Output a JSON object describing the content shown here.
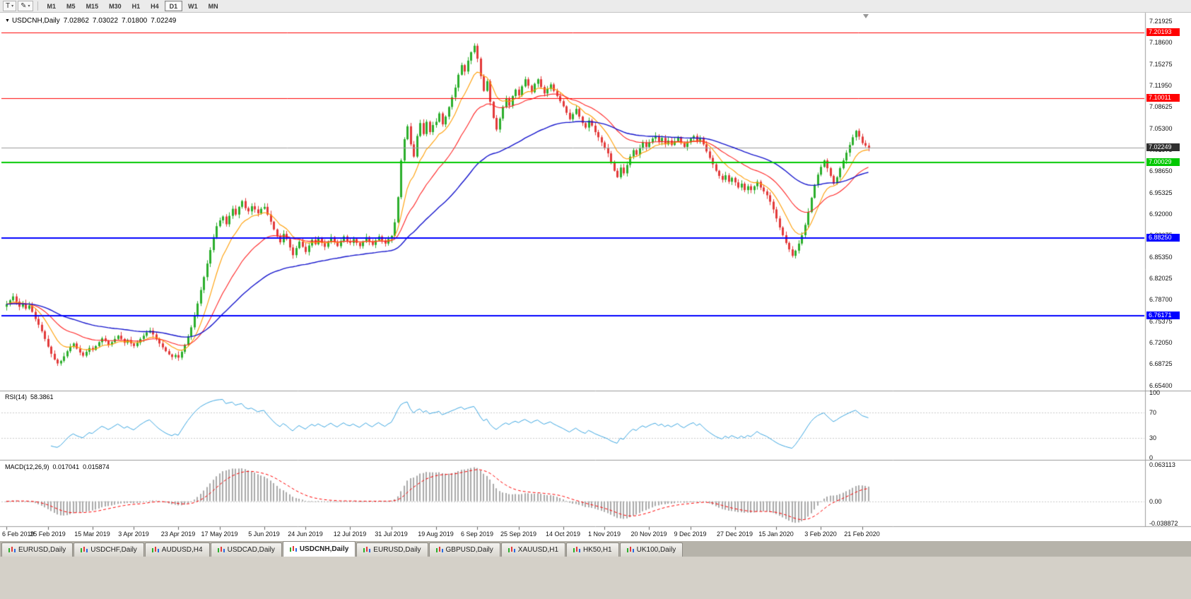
{
  "toolbar": {
    "text_tool_glyph": "T",
    "drawing_tool_glyph": "✎",
    "dropdown_glyph": "▾",
    "timeframes": [
      "M1",
      "M5",
      "M15",
      "M30",
      "H1",
      "H4",
      "D1",
      "W1",
      "MN"
    ],
    "active_timeframe": "D1"
  },
  "chart": {
    "menu_glyph": "▼",
    "title": "USDCNH,Daily",
    "ohlc": {
      "open": "7.02862",
      "high": "7.03022",
      "low": "7.01800",
      "close": "7.02249"
    }
  },
  "rsi": {
    "label": "RSI(14)",
    "value": "58.3861"
  },
  "macd": {
    "label": "MACD(12,26,9)",
    "value1": "0.017041",
    "value2": "0.015874"
  },
  "tabs_bar": {
    "active_index": 4,
    "items": [
      "EURUSD,Daily",
      "USDCHF,Daily",
      "AUDUSD,H4",
      "USDCAD,Daily",
      "USDCNH,Daily",
      "EURUSD,Daily",
      "GBPUSD,Daily",
      "XAUUSD,H1",
      "HK50,H1",
      "UK100,Daily"
    ]
  },
  "chart_data": {
    "type": "candlestick",
    "symbol": "USDCNH",
    "timeframe": "Daily",
    "ylim": [
      6.648,
      7.229
    ],
    "y_tick_labels": [
      "7.21925",
      "7.18600",
      "7.15275",
      "7.11950",
      "7.08625",
      "7.05300",
      "7.01975",
      "6.98650",
      "6.95325",
      "6.92000",
      "6.88675",
      "6.85350",
      "6.82025",
      "6.78700",
      "6.75375",
      "6.72050",
      "6.68725",
      "6.65400"
    ],
    "x_tick_labels": [
      "6 Feb 2019",
      "25 Feb 2019",
      "15 Mar 2019",
      "3 Apr 2019",
      "23 Apr 2019",
      "17 May 2019",
      "5 Jun 2019",
      "24 Jun 2019",
      "12 Jul 2019",
      "31 Jul 2019",
      "19 Aug 2019",
      "6 Sep 2019",
      "25 Sep 2019",
      "14 Oct 2019",
      "1 Nov 2019",
      "20 Nov 2019",
      "9 Dec 2019",
      "27 Dec 2019",
      "15 Jan 2020",
      "3 Feb 2020",
      "21 Feb 2020"
    ],
    "closes": [
      6.78,
      6.786,
      6.792,
      6.784,
      6.776,
      6.781,
      6.773,
      6.778,
      6.768,
      6.757,
      6.748,
      6.738,
      6.726,
      6.714,
      6.703,
      6.694,
      6.688,
      6.692,
      6.699,
      6.707,
      6.714,
      6.719,
      6.711,
      6.705,
      6.7,
      6.706,
      6.712,
      6.709,
      6.715,
      6.721,
      6.727,
      6.723,
      6.717,
      6.721,
      6.726,
      6.731,
      6.726,
      6.72,
      6.724,
      6.719,
      6.715,
      6.72,
      6.726,
      6.731,
      6.736,
      6.739,
      6.733,
      6.726,
      6.719,
      6.713,
      6.707,
      6.702,
      6.698,
      6.701,
      6.697,
      6.706,
      6.717,
      6.73,
      6.744,
      6.762,
      6.781,
      6.802,
      6.822,
      6.843,
      6.864,
      6.884,
      6.901,
      6.91,
      6.916,
      6.904,
      6.917,
      6.928,
      6.919,
      6.931,
      6.94,
      6.929,
      6.924,
      6.932,
      6.927,
      6.921,
      6.928,
      6.931,
      6.919,
      6.908,
      6.896,
      6.885,
      6.876,
      6.889,
      6.881,
      6.868,
      6.856,
      6.867,
      6.877,
      6.869,
      6.861,
      6.871,
      6.88,
      6.873,
      6.882,
      6.875,
      6.869,
      6.877,
      6.884,
      6.876,
      6.87,
      6.878,
      6.885,
      6.878,
      6.875,
      6.881,
      6.875,
      6.87,
      6.877,
      6.884,
      6.877,
      6.872,
      6.879,
      6.885,
      6.879,
      6.874,
      6.881,
      6.886,
      6.907,
      6.946,
      7.003,
      7.036,
      7.056,
      7.028,
      7.009,
      7.041,
      7.061,
      7.044,
      7.063,
      7.047,
      7.058,
      7.063,
      7.076,
      7.059,
      7.071,
      7.086,
      7.101,
      7.116,
      7.136,
      7.151,
      7.141,
      7.158,
      7.171,
      7.181,
      7.161,
      7.134,
      7.111,
      7.126,
      7.094,
      7.069,
      7.051,
      7.068,
      7.086,
      7.099,
      7.088,
      7.103,
      7.113,
      7.104,
      7.118,
      7.129,
      7.119,
      7.109,
      7.122,
      7.129,
      7.117,
      7.107,
      7.114,
      7.121,
      7.111,
      7.103,
      7.095,
      7.087,
      7.077,
      7.067,
      7.075,
      7.083,
      7.071,
      7.061,
      7.054,
      7.065,
      7.057,
      7.047,
      7.039,
      7.031,
      7.023,
      7.014,
      6.999,
      6.987,
      6.977,
      6.992,
      6.983,
      6.996,
      7.009,
      7.019,
      7.012,
      7.023,
      7.031,
      7.024,
      7.031,
      7.037,
      7.041,
      7.032,
      7.038,
      7.028,
      7.034,
      7.027,
      7.033,
      7.039,
      7.03,
      7.024,
      7.031,
      7.037,
      7.041,
      7.032,
      7.038,
      7.028,
      7.017,
      7.007,
      6.997,
      6.987,
      6.979,
      6.973,
      6.98,
      6.97,
      6.976,
      6.969,
      6.961,
      6.967,
      6.957,
      6.963,
      6.957,
      6.963,
      6.97,
      6.961,
      6.955,
      6.949,
      6.939,
      6.927,
      6.913,
      6.899,
      6.887,
      6.875,
      6.865,
      6.855,
      6.863,
      6.874,
      6.887,
      6.903,
      6.923,
      6.945,
      6.965,
      6.981,
      6.993,
      7.003,
      6.991,
      6.979,
      6.967,
      6.977,
      6.991,
      7.003,
      7.015,
      7.027,
      7.039,
      7.049,
      7.04,
      7.03,
      7.026,
      7.022
    ],
    "candle_colors": {
      "up": "#2bae2b",
      "down": "#e23a3a"
    },
    "levels": [
      {
        "value": 7.20193,
        "label": "7.20193",
        "color": "#ff0000",
        "width": 1
      },
      {
        "value": 7.10011,
        "label": "7.10011",
        "color": "#ff0000",
        "width": 1
      },
      {
        "value": 7.00029,
        "label": "7.00029",
        "color": "#00c800",
        "width": 2
      },
      {
        "value": 6.8825,
        "label": "6.88250",
        "color": "#0000ff",
        "width": 2
      },
      {
        "value": 6.76171,
        "label": "6.76171",
        "color": "#0000ff",
        "width": 2
      }
    ],
    "current_price": {
      "value": 7.02249,
      "label": "7.02249",
      "line_color": "#9b9b9b",
      "tag_color": "#2f2f2f"
    },
    "indicators": {
      "moving_averages": [
        {
          "period": 10,
          "color": "#ff9d00"
        },
        {
          "period": 25,
          "color": "#ff2222"
        },
        {
          "period": 60,
          "color": "#1414cc"
        }
      ],
      "rsi": {
        "period": 14,
        "current": 58.3861,
        "ticks": [
          100,
          70,
          30,
          0
        ],
        "level_lines": [
          70,
          30
        ],
        "color": "#3da6e0"
      },
      "macd": {
        "fast": 12,
        "slow": 26,
        "signal": 9,
        "ticks": [
          "0.063113",
          "0.00",
          "-0.038872"
        ],
        "range": [
          -0.038872,
          0.063113
        ],
        "hist_color": "#a9a9a9",
        "signal_color": "#ff0000"
      }
    }
  }
}
